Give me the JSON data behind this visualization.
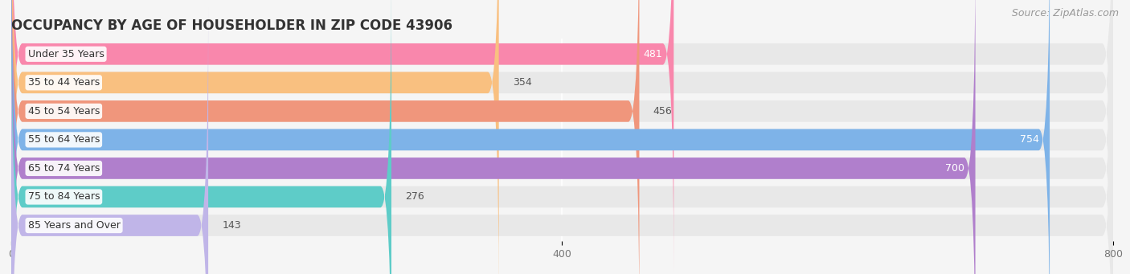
{
  "title": "OCCUPANCY BY AGE OF HOUSEHOLDER IN ZIP CODE 43906",
  "source": "Source: ZipAtlas.com",
  "categories": [
    "Under 35 Years",
    "35 to 44 Years",
    "45 to 54 Years",
    "55 to 64 Years",
    "65 to 74 Years",
    "75 to 84 Years",
    "85 Years and Over"
  ],
  "values": [
    481,
    354,
    456,
    754,
    700,
    276,
    143
  ],
  "bar_colors": [
    "#F987AC",
    "#F9C080",
    "#F0967C",
    "#7EB3E8",
    "#B07FCC",
    "#5ECCC8",
    "#C0B5E8"
  ],
  "value_inside": [
    true,
    false,
    false,
    true,
    true,
    false,
    false
  ],
  "xlim": [
    0,
    800
  ],
  "xticks": [
    0,
    400,
    800
  ],
  "background_color": "#f5f5f5",
  "bar_bg_color": "#e8e8e8",
  "title_fontsize": 12,
  "source_fontsize": 9,
  "label_fontsize": 9,
  "value_fontsize": 9
}
